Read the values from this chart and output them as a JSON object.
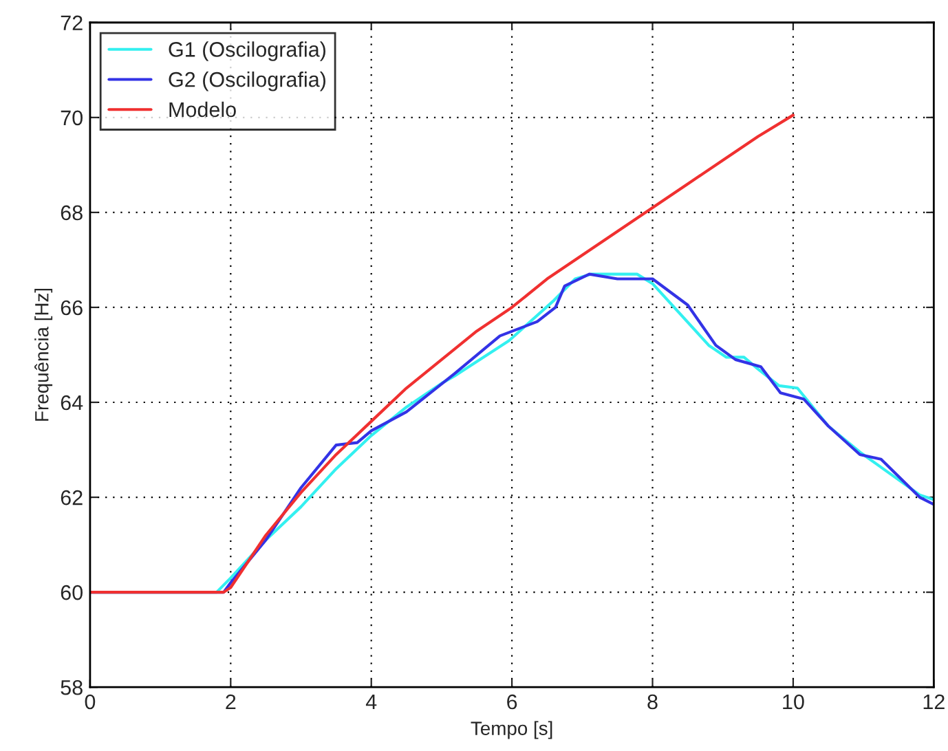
{
  "chart_data": {
    "type": "line",
    "xlabel": "Tempo [s]",
    "ylabel": "Frequência [Hz]",
    "xlim": [
      0,
      12
    ],
    "ylim": [
      58,
      72
    ],
    "xticks": [
      0,
      2,
      4,
      6,
      8,
      10,
      12
    ],
    "yticks": [
      58,
      60,
      62,
      64,
      66,
      68,
      70,
      72
    ],
    "grid": true,
    "legend": "top left",
    "line_style": "solid",
    "marker": "none",
    "series": [
      {
        "name": "G1 (Oscilografia)",
        "color": "#33f0f0",
        "x": [
          0,
          1.8,
          2.0,
          2.5,
          3.0,
          3.5,
          4.0,
          4.5,
          5.0,
          5.18,
          5.96,
          6.6,
          6.9,
          7.13,
          7.78,
          8.0,
          8.8,
          9.05,
          9.3,
          9.5,
          9.8,
          10.06,
          10.5,
          10.95,
          11.28,
          11.8,
          12
        ],
        "values": [
          60,
          60,
          60.3,
          61.1,
          61.8,
          62.6,
          63.3,
          63.9,
          64.4,
          64.55,
          65.3,
          66.15,
          66.6,
          66.7,
          66.7,
          66.5,
          65.2,
          64.95,
          64.95,
          64.7,
          64.35,
          64.3,
          63.5,
          62.95,
          62.6,
          62.05,
          61.95
        ]
      },
      {
        "name": "G2 (Oscilografia)",
        "color": "#3333e6",
        "x": [
          0,
          1.9,
          2.0,
          2.5,
          3.0,
          3.5,
          3.8,
          4.0,
          4.5,
          5.18,
          5.83,
          6.36,
          6.62,
          6.75,
          7.1,
          7.5,
          8.0,
          8.5,
          8.9,
          9.18,
          9.54,
          9.82,
          10.15,
          10.5,
          10.95,
          11.25,
          11.8,
          12
        ],
        "values": [
          60,
          60,
          60.2,
          61.1,
          62.2,
          63.1,
          63.15,
          63.4,
          63.8,
          64.6,
          65.4,
          65.7,
          66.0,
          66.45,
          66.7,
          66.6,
          66.6,
          66.05,
          65.2,
          64.9,
          64.75,
          64.2,
          64.07,
          63.5,
          62.9,
          62.8,
          62.0,
          61.85
        ]
      },
      {
        "name": "Modelo",
        "color": "#f03030",
        "x": [
          0,
          1.9,
          2.0,
          2.5,
          3.0,
          3.5,
          4.0,
          4.5,
          5.0,
          5.5,
          6.0,
          6.5,
          7.0,
          7.5,
          8.0,
          8.5,
          9.0,
          9.5,
          10.0
        ],
        "values": [
          60,
          60,
          60.1,
          61.2,
          62.1,
          62.9,
          63.6,
          64.3,
          64.9,
          65.5,
          66.0,
          66.6,
          67.1,
          67.6,
          68.1,
          68.6,
          69.1,
          69.6,
          70.05
        ]
      }
    ]
  }
}
